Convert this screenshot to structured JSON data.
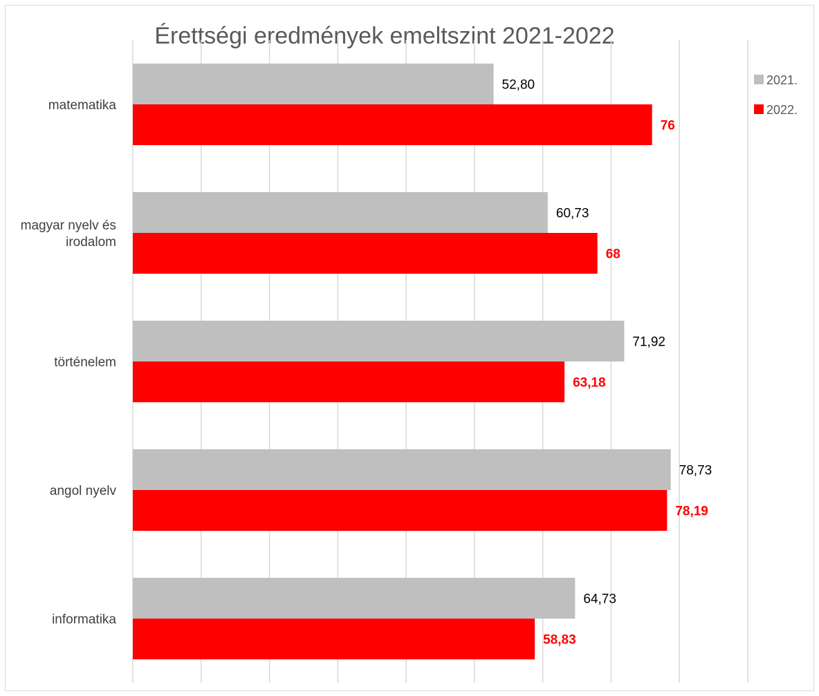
{
  "chart_data": {
    "type": "bar",
    "orientation": "horizontal",
    "title": "Érettségi eredmények emeltszint 2021-2022",
    "categories": [
      "matematika",
      "magyar nyelv és irodalom",
      "történelem",
      "angol nyelv",
      "informatika"
    ],
    "category_lines": [
      [
        "matematika"
      ],
      [
        "magyar nyelv és",
        "irodalom"
      ],
      [
        "történelem"
      ],
      [
        "angol nyelv"
      ],
      [
        "informatika"
      ]
    ],
    "xlim": [
      0,
      90
    ],
    "grid": "vertical",
    "legend_position": "right",
    "series": [
      {
        "name": "2021.",
        "color": "#bfbfbf",
        "label_color": "#000000",
        "label_bold": false,
        "values": [
          52.8,
          60.73,
          71.92,
          78.73,
          64.73
        ],
        "labels": [
          "52,80",
          "60,73",
          "71,92",
          "78,73",
          "64,73"
        ]
      },
      {
        "name": "2022.",
        "color": "#ff0000",
        "label_color": "#ff0000",
        "label_bold": true,
        "values": [
          76,
          68,
          63.18,
          78.19,
          58.83
        ],
        "labels": [
          "76",
          "68",
          "63,18",
          "78,19",
          "58,83"
        ]
      }
    ]
  }
}
